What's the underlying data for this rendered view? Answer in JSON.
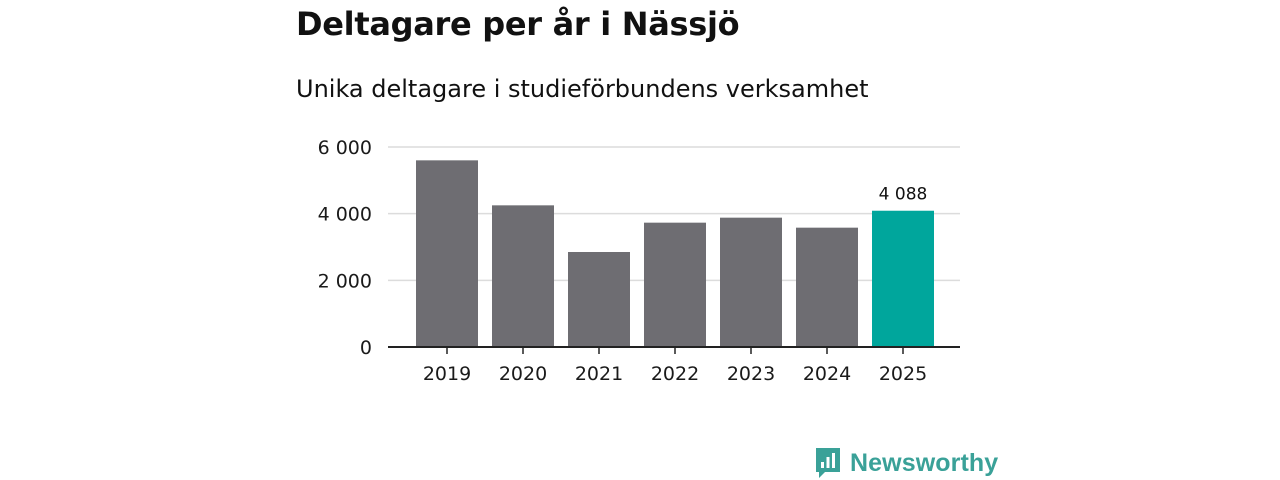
{
  "header": {
    "title": "Deltagare per år i Nässjö",
    "subtitle": "Unika deltagare i studieförbundens verksamhet"
  },
  "chart_data": {
    "type": "bar",
    "title": "Deltagare per år i Nässjö",
    "subtitle": "Unika deltagare i studieförbundens verksamhet",
    "xlabel": "",
    "ylabel": "",
    "categories": [
      "2019",
      "2020",
      "2021",
      "2022",
      "2023",
      "2024",
      "2025"
    ],
    "values": [
      5600,
      4250,
      2850,
      3730,
      3880,
      3580,
      4088
    ],
    "highlight_index": 6,
    "data_labels": [
      null,
      null,
      null,
      null,
      null,
      null,
      "4 088"
    ],
    "ylim": [
      0,
      6000
    ],
    "yticks": [
      0,
      2000,
      4000,
      6000
    ],
    "ytick_labels": [
      "0",
      "2 000",
      "4 000",
      "6 000"
    ],
    "grid": true,
    "colors": {
      "bar": "#6e6d72",
      "highlight": "#00a69c",
      "grid": "#dcdcdc",
      "axis": "#222222"
    }
  },
  "brand": {
    "name": "Newsworthy",
    "icon": "newsworthy-logo-icon",
    "color": "#3aa198"
  }
}
